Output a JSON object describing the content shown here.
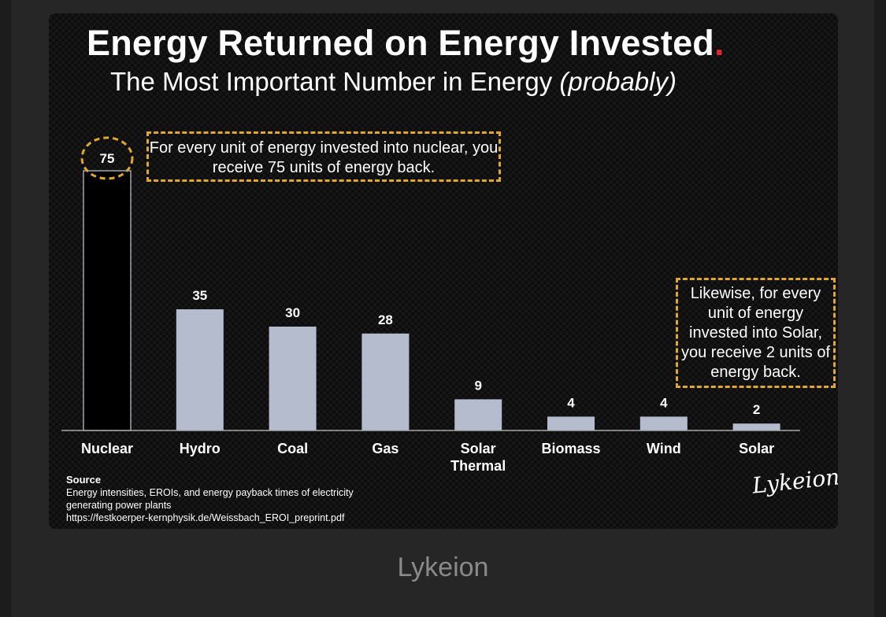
{
  "title": "Energy Returned on Energy Invested",
  "title_dot": ".",
  "subtitle": "The Most Important Number in Energy",
  "subtitle_em": "(probably)",
  "callout_nuclear": "For every unit of energy invested into nuclear, you receive 75 units of energy back.",
  "callout_solar": "Likewise, for every unit of energy invested into Solar, you receive 2 units of energy back.",
  "source": {
    "label": "Source",
    "line1": "Energy intensities, EROIs, and energy payback times of electricity",
    "line2": "generating power plants",
    "url": "https://festkoerper-kernphysik.de/Weissbach_EROI_preprint.pdf"
  },
  "signature": "Lykeion",
  "caption": "Lykeion",
  "colors": {
    "bar_fill": "#b4bccd",
    "highlight_bar_fill": "#000000",
    "highlight_bar_stroke": "#c8ccd6",
    "callout_border": "#e0a92a",
    "title_dot": "#e3262a",
    "axis": "#aaaaaa"
  },
  "chart_data": {
    "type": "bar",
    "categories": [
      "Nuclear",
      "Hydro",
      "Coal",
      "Gas",
      "Solar Thermal",
      "Biomass",
      "Wind",
      "Solar"
    ],
    "values": [
      75,
      35,
      30,
      28,
      9,
      4,
      4,
      2
    ],
    "highlight_category": "Nuclear",
    "title": "Energy Returned on Energy Invested",
    "subtitle": "The Most Important Number in Energy (probably)",
    "xlabel": "",
    "ylabel": "",
    "ylim": [
      0,
      75
    ],
    "grid": false,
    "legend": "none"
  }
}
